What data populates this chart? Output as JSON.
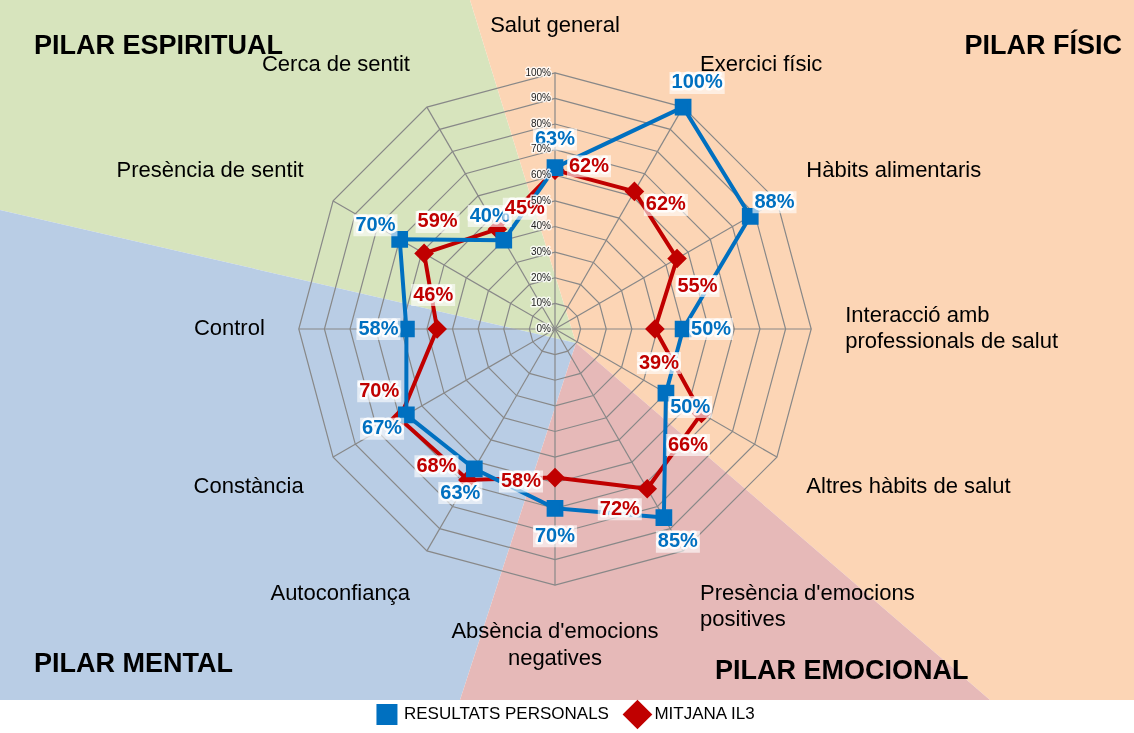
{
  "chart_data": {
    "type": "radar",
    "categories": [
      "Salut general",
      "Exercici físic",
      "Hàbits alimentaris",
      "Interacció amb professionals de salut",
      "Altres hàbits de salut",
      "Presència d'emocions positives",
      "Absència d'emocions negatives",
      "Autoconfiança",
      "Constància",
      "Control",
      "Presència de sentit",
      "Cerca de sentit"
    ],
    "series": [
      {
        "name": "RESULTATS PERSONALS",
        "color": "#0070c0",
        "marker": "square",
        "values": [
          63,
          100,
          88,
          50,
          50,
          85,
          70,
          63,
          67,
          58,
          70,
          40
        ],
        "value_labels": [
          "63%",
          "100%",
          "88%",
          "50%",
          "50%",
          "85%",
          "70%",
          "63%",
          "67%",
          "58%",
          "70%",
          "40%"
        ]
      },
      {
        "name": "MITJANA IL3",
        "color": "#c00000",
        "marker": "diamond",
        "values": [
          62,
          62,
          55,
          39,
          66,
          72,
          58,
          68,
          70,
          46,
          59,
          45
        ],
        "value_labels": [
          "62%",
          "62%",
          "55%",
          "39%",
          "66%",
          "72%",
          "58%",
          "68%",
          "70%",
          "46%",
          "59%",
          "45%"
        ]
      }
    ],
    "ylim": [
      0,
      100
    ],
    "yticks": [
      {
        "value": 0,
        "label": "0%"
      },
      {
        "value": 10,
        "label": "10%"
      },
      {
        "value": 20,
        "label": "20%"
      },
      {
        "value": 30,
        "label": "30%"
      },
      {
        "value": 40,
        "label": "40%"
      },
      {
        "value": 50,
        "label": "50%"
      },
      {
        "value": 60,
        "label": "60%"
      },
      {
        "value": 70,
        "label": "70%"
      },
      {
        "value": 80,
        "label": "80%"
      },
      {
        "value": 90,
        "label": "90%"
      },
      {
        "value": 100,
        "label": "100%"
      }
    ],
    "grid": true,
    "legend": "bottom",
    "line_style": "solid",
    "annotations": [
      "PILAR ESPIRITUAL",
      "PILAR FÍSIC",
      "PILAR MENTAL",
      "PILAR EMOCIONAL"
    ]
  }
}
